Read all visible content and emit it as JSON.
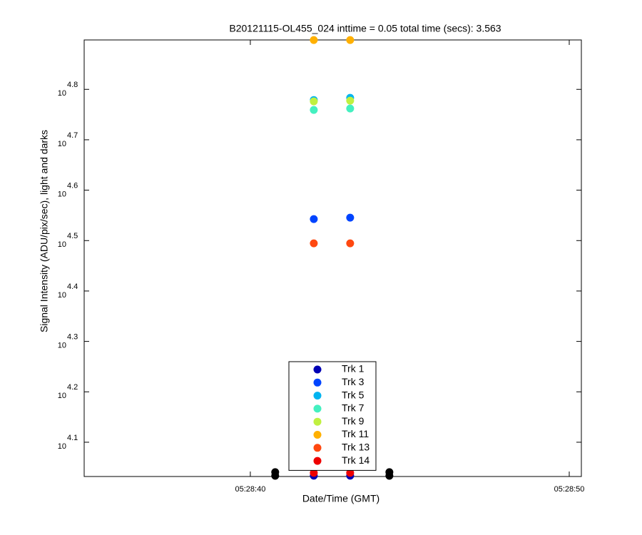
{
  "chart_data": {
    "type": "scatter",
    "title": "B20121115-OL455_024 inttime = 0.05 total time (secs): 3.563",
    "x_label": "Date/Time (GMT)",
    "y_label": "Signal Intensity (ADU/pix/sec), light and darks",
    "yscale": "log",
    "xlim": [
      34.79,
      50.38
    ],
    "ylim": [
      10765,
      79070
    ],
    "xticks": [
      {
        "value": 40,
        "label": "05:28:40"
      },
      {
        "value": 50,
        "label": "05:28:50"
      }
    ],
    "yticks": [
      {
        "value": 12589.25,
        "label": "10",
        "exponent": "4.1"
      },
      {
        "value": 15848.93,
        "label": "10",
        "exponent": "4.2"
      },
      {
        "value": 19952.62,
        "label": "10",
        "exponent": "4.3"
      },
      {
        "value": 25118.86,
        "label": "10",
        "exponent": "4.4"
      },
      {
        "value": 31622.78,
        "label": "10",
        "exponent": "4.5"
      },
      {
        "value": 39810.72,
        "label": "10",
        "exponent": "4.6"
      },
      {
        "value": 50118.72,
        "label": "10",
        "exponent": "4.7"
      },
      {
        "value": 63095.73,
        "label": "10",
        "exponent": "4.8"
      }
    ],
    "series": [
      {
        "color": "#000000",
        "x": [
          40.78,
          40.78,
          44.36,
          44.36
        ],
        "values": [
          10980,
          10800,
          10980,
          10800
        ]
      },
      {
        "name": "Trk 1",
        "color": "#0000b4",
        "x": [
          41.99,
          43.13
        ],
        "values": [
          10804,
          10804
        ]
      },
      {
        "name": "Trk 3",
        "color": "#0044ff",
        "x": [
          41.99,
          43.13
        ],
        "values": [
          34890,
          35120
        ]
      },
      {
        "name": "Trk 5",
        "color": "#00b4f0",
        "x": [
          41.99,
          43.13
        ],
        "values": [
          60100,
          60700
        ]
      },
      {
        "name": "Trk 7",
        "color": "#44f0c0",
        "x": [
          41.99,
          43.13
        ],
        "values": [
          57430,
          57800
        ]
      },
      {
        "name": "Trk 9",
        "color": "#c0f040",
        "x": [
          41.99,
          43.13
        ],
        "values": [
          59720,
          59910
        ]
      },
      {
        "name": "Trk 11",
        "color": "#ffb000",
        "x": [
          41.99,
          43.13
        ],
        "values": [
          79040,
          79040
        ]
      },
      {
        "name": "Trk 13",
        "color": "#ff4810",
        "x": [
          41.99,
          43.13
        ],
        "values": [
          31230,
          31230
        ]
      },
      {
        "name": "Trk 14",
        "color": "#ee0000",
        "x": [
          41.99,
          43.13
        ],
        "values": [
          10945,
          10945
        ]
      }
    ]
  }
}
